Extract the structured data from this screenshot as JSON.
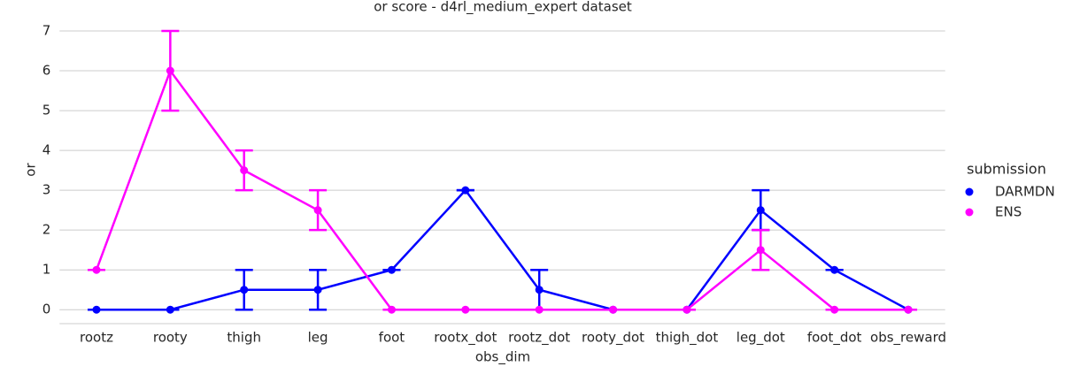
{
  "chart_data": {
    "type": "pointplot",
    "title": "or score - d4rl_medium_expert dataset",
    "x_label": "obs_dim",
    "y_label": "or",
    "categories": [
      "rootz",
      "rooty",
      "thigh",
      "leg",
      "foot",
      "rootx_dot",
      "rootz_dot",
      "rooty_dot",
      "thigh_dot",
      "leg_dot",
      "foot_dot",
      "obs_reward"
    ],
    "series": [
      {
        "name": "DARMDN",
        "color": "#0000ff",
        "values": [
          0,
          0,
          0.5,
          0.5,
          1,
          3,
          0.5,
          0,
          0,
          2.5,
          1,
          0
        ],
        "ci_low": [
          0,
          0,
          0,
          0,
          1,
          3,
          0,
          0,
          0,
          2,
          1,
          0
        ],
        "ci_high": [
          0,
          0,
          1,
          1,
          1,
          3,
          1,
          0,
          0,
          3,
          1,
          0
        ]
      },
      {
        "name": "ENS",
        "color": "#ff00ff",
        "values": [
          1,
          6,
          3.5,
          2.5,
          0,
          0,
          0,
          0,
          0,
          1.5,
          0,
          0
        ],
        "ci_low": [
          1,
          5,
          3,
          2,
          0,
          0,
          0,
          0,
          0,
          1,
          0,
          0
        ],
        "ci_high": [
          1,
          7,
          4,
          3,
          0,
          0,
          0,
          0,
          0,
          2,
          0,
          0
        ]
      }
    ],
    "legend_title": "submission",
    "ylim": [
      -0.35,
      7.3
    ],
    "yticks": [
      0,
      1,
      2,
      3,
      4,
      5,
      6,
      7
    ],
    "grid": true
  }
}
